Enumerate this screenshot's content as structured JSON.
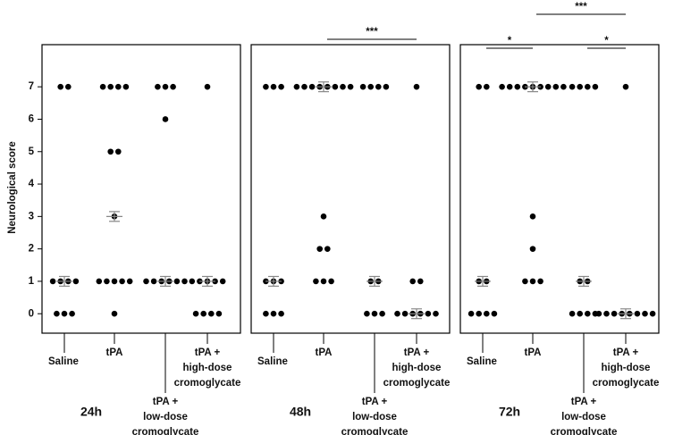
{
  "chart_data": [
    {
      "type": "dot",
      "title": "24h",
      "y_label": "Neurological score",
      "categories": [
        [
          "Saline"
        ],
        [
          "tPA"
        ],
        [
          "tPA +",
          "low-dose",
          "cromoglycate"
        ],
        [
          "tPA +",
          "high-dose",
          "cromoglycate"
        ]
      ],
      "values": [
        [
          7,
          7,
          1,
          1,
          1,
          1,
          0,
          0,
          0
        ],
        [
          7,
          7,
          7,
          7,
          5,
          5,
          3,
          1,
          1,
          1,
          1,
          1,
          0
        ],
        [
          7,
          7,
          7,
          6,
          1,
          1,
          1,
          1,
          1,
          1
        ],
        [
          7,
          1,
          1,
          1,
          1,
          1,
          0,
          0,
          0,
          0
        ]
      ],
      "medians": [
        1,
        3,
        1,
        1
      ],
      "errors": [
        0.15,
        0.15,
        0.15,
        0.15
      ],
      "ylim": [
        -0.6,
        8.3
      ],
      "yticks": [
        0,
        1,
        2,
        3,
        4,
        5,
        6,
        7
      ],
      "color": "#000000",
      "annotations": []
    },
    {
      "type": "dot",
      "title": "48h",
      "categories": [
        [
          "Saline"
        ],
        [
          "tPA"
        ],
        [
          "tPA +",
          "low-dose",
          "cromoglycate"
        ],
        [
          "tPA +",
          "high-dose",
          "cromoglycate"
        ]
      ],
      "values": [
        [
          7,
          7,
          7,
          1,
          1,
          1,
          0,
          0,
          0
        ],
        [
          7,
          7,
          7,
          7,
          7,
          7,
          7,
          7,
          3,
          2,
          2,
          1,
          1,
          1
        ],
        [
          7,
          7,
          7,
          7,
          1,
          1,
          0,
          0,
          0
        ],
        [
          7,
          1,
          1,
          0,
          0,
          0,
          0,
          0,
          0
        ]
      ],
      "medians": [
        1,
        7,
        1,
        0
      ],
      "errors": [
        0.15,
        0.15,
        0.15,
        0.15
      ],
      "ylim": [
        -0.6,
        8.3
      ],
      "color": "#000000",
      "annotations": [
        {
          "text": "***",
          "from": 1,
          "to": 3
        }
      ]
    },
    {
      "type": "dot",
      "title": "72h",
      "categories": [
        [
          "Saline"
        ],
        [
          "tPA"
        ],
        [
          "tPA +",
          "low-dose",
          "cromoglycate"
        ],
        [
          "tPA +",
          "high-dose",
          "cromoglycate"
        ]
      ],
      "values": [
        [
          7,
          7,
          1,
          1,
          0,
          0,
          0,
          0
        ],
        [
          7,
          7,
          7,
          7,
          7,
          7,
          7,
          7,
          7,
          3,
          2,
          1,
          1,
          1
        ],
        [
          7,
          7,
          7,
          7,
          1,
          1,
          0,
          0,
          0,
          0
        ],
        [
          7,
          0,
          0,
          0,
          0,
          0,
          0,
          0,
          0
        ]
      ],
      "medians": [
        1,
        7,
        1,
        0
      ],
      "errors": [
        0.15,
        0.15,
        0.15,
        0.15
      ],
      "ylim": [
        -0.6,
        8.3
      ],
      "color": "#000000",
      "annotations": [
        {
          "text": "*",
          "from": 0,
          "to": 1
        },
        {
          "text": "*",
          "from": 2,
          "to": 3
        },
        {
          "text": "***",
          "from": 1,
          "to": 3
        }
      ]
    }
  ]
}
